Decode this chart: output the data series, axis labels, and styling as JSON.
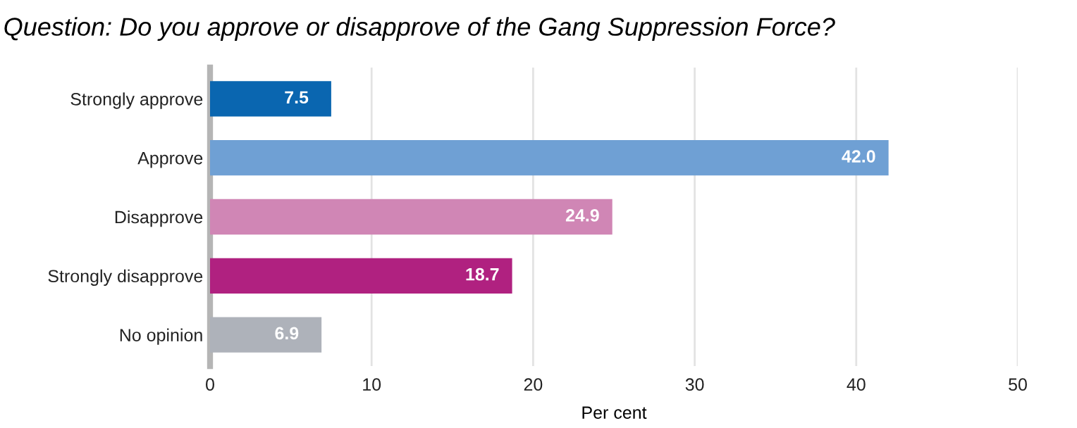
{
  "chart_data": {
    "type": "bar",
    "orientation": "horizontal",
    "title": "Question: Do you approve or disapprove of the Gang Suppression Force?",
    "xlabel": "Per cent",
    "categories": [
      "Strongly approve",
      "Approve",
      "Disapprove",
      "Strongly disapprove",
      "No opinion"
    ],
    "values": [
      7.5,
      42.0,
      24.9,
      18.7,
      6.9
    ],
    "value_labels": [
      "7.5",
      "42.0",
      "24.9",
      "18.7",
      "6.9"
    ],
    "colors": [
      "#0a66b0",
      "#6fa0d4",
      "#d086b5",
      "#b02180",
      "#aeb2ba"
    ],
    "xlim": [
      0,
      50
    ],
    "xticks": [
      0,
      10,
      20,
      30,
      40,
      50
    ],
    "grid": "x",
    "legend": false
  }
}
